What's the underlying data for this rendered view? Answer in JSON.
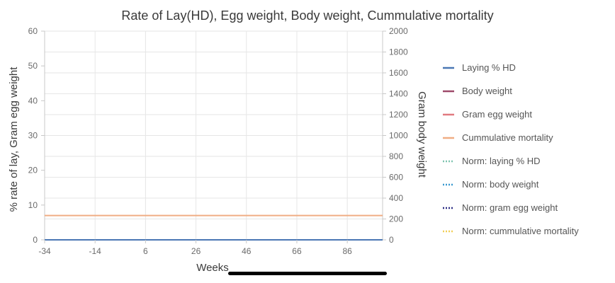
{
  "chart_data": {
    "type": "line",
    "title": "Rate of Lay(HD), Egg weight, Body weight, Cummulative mortality",
    "xlabel": "Weeks",
    "ylabel_left": "% rate of lay, Gram egg weight",
    "ylabel_right": "Gram body weight",
    "x_ticks": [
      -34,
      -14,
      6,
      26,
      46,
      66,
      86
    ],
    "xlim": [
      -34,
      100
    ],
    "y_left_ticks": [
      0,
      10,
      20,
      30,
      40,
      50,
      60
    ],
    "ylim_left": [
      0,
      60
    ],
    "y_right_ticks": [
      0,
      200,
      400,
      600,
      800,
      1000,
      1200,
      1400,
      1600,
      1800,
      2000
    ],
    "ylim_right": [
      0,
      2000
    ],
    "grid": true,
    "legend_position": "right",
    "series": [
      {
        "name": "Laying % HD",
        "axis": "left",
        "color": "#4a77b4",
        "style": "solid",
        "x": [
          -34,
          100
        ],
        "y": [
          0,
          0
        ]
      },
      {
        "name": "Body weight",
        "axis": "right",
        "color": "#9e4a6a",
        "style": "solid",
        "x": [],
        "y": []
      },
      {
        "name": "Gram egg weight",
        "axis": "left",
        "color": "#e07a80",
        "style": "solid",
        "x": [],
        "y": []
      },
      {
        "name": "Cummulative mortality",
        "axis": "left",
        "color": "#f0ad84",
        "style": "solid",
        "x": [
          -34,
          100
        ],
        "y": [
          7,
          7
        ]
      },
      {
        "name": "Norm: laying % HD",
        "axis": "left",
        "color": "#7fc4b0",
        "style": "dotted",
        "x": [],
        "y": []
      },
      {
        "name": "Norm: body weight",
        "axis": "right",
        "color": "#3a9ad0",
        "style": "dotted",
        "x": [],
        "y": []
      },
      {
        "name": "Norm: gram egg weight",
        "axis": "left",
        "color": "#2e2f86",
        "style": "dotted",
        "x": [],
        "y": []
      },
      {
        "name": "Norm: cummulative mortality",
        "axis": "left",
        "color": "#f2cf57",
        "style": "dotted",
        "x": [],
        "y": []
      }
    ]
  }
}
